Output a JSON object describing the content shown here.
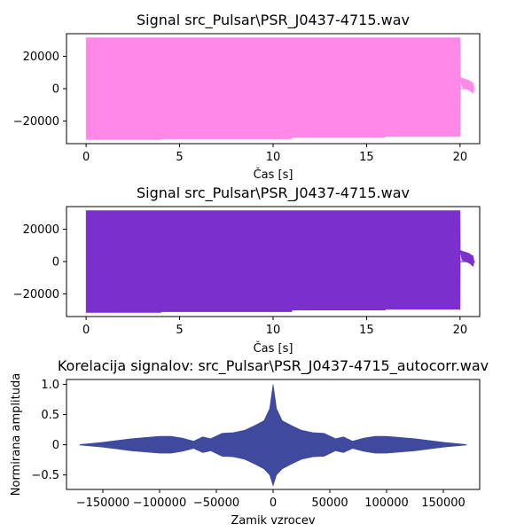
{
  "chart_data": [
    {
      "type": "area",
      "title": "Signal src_Pulsar\\PSR_J0437-4715.wav",
      "xlabel": "Čas [s]",
      "ylabel": "",
      "xlim": [
        -1.05,
        21.05
      ],
      "ylim": [
        -34000,
        34000
      ],
      "xticks": [
        0,
        5,
        10,
        15,
        20
      ],
      "yticks": [
        20000,
        0,
        -20000
      ],
      "color": "#ff88e8",
      "envelope": [
        [
          0,
          -31500,
          31500
        ],
        [
          4,
          -31500,
          31500
        ],
        [
          4.01,
          -31000,
          31500
        ],
        [
          11,
          -31000,
          31500
        ],
        [
          11.01,
          -30000,
          31500
        ],
        [
          16,
          -30000,
          31500
        ],
        [
          16.01,
          -29500,
          31500
        ],
        [
          20,
          -29500,
          31500
        ],
        [
          20.01,
          7000,
          7000
        ],
        [
          20.1,
          1000,
          6500
        ],
        [
          20.5,
          -1000,
          5000
        ],
        [
          20.6,
          -2000,
          4000
        ],
        [
          20.7,
          -3000,
          3500
        ],
        [
          20.75,
          0,
          0
        ],
        [
          20.8,
          0,
          0
        ]
      ]
    },
    {
      "type": "area",
      "title": "Signal src_Pulsar\\PSR_J0437-4715.wav",
      "xlabel": "Čas [s]",
      "ylabel": "",
      "xlim": [
        -1.05,
        21.05
      ],
      "ylim": [
        -34000,
        34000
      ],
      "xticks": [
        0,
        5,
        10,
        15,
        20
      ],
      "yticks": [
        20000,
        0,
        -20000
      ],
      "color": "#7b2fcd",
      "envelope": [
        [
          0,
          -31500,
          31500
        ],
        [
          4,
          -31500,
          31500
        ],
        [
          4.01,
          -31000,
          31500
        ],
        [
          11,
          -31000,
          31500
        ],
        [
          11.01,
          -30000,
          31500
        ],
        [
          16,
          -30000,
          31500
        ],
        [
          16.01,
          -29500,
          31500
        ],
        [
          20,
          -29500,
          31500
        ],
        [
          20.01,
          7000,
          7000
        ],
        [
          20.1,
          1000,
          6500
        ],
        [
          20.5,
          -1000,
          5000
        ],
        [
          20.6,
          -2000,
          4000
        ],
        [
          20.7,
          -3000,
          3500
        ],
        [
          20.75,
          0,
          0
        ],
        [
          20.8,
          0,
          0
        ]
      ]
    },
    {
      "type": "area",
      "title": "Korelacija signalov: src_Pulsar\\PSR_J0437-4715_autocorr.wav",
      "xlabel": "Zamik vzrocev",
      "ylabel": "Normirana amplituda",
      "xlim": [
        -182000,
        182000
      ],
      "ylim": [
        -0.74,
        1.08
      ],
      "xticks": [
        -150000,
        -100000,
        -50000,
        0,
        50000,
        100000,
        150000
      ],
      "yticks": [
        1.0,
        0.5,
        0.0,
        -0.5
      ],
      "color": "#3f4a9e",
      "envelope": [
        [
          -170000,
          -0.005,
          0.005
        ],
        [
          -150000,
          -0.04,
          0.04
        ],
        [
          -125000,
          -0.1,
          0.1
        ],
        [
          -100000,
          -0.14,
          0.14
        ],
        [
          -90000,
          -0.14,
          0.14
        ],
        [
          -80000,
          -0.11,
          0.11
        ],
        [
          -70000,
          -0.06,
          0.06
        ],
        [
          -62000,
          -0.13,
          0.13
        ],
        [
          -55000,
          -0.1,
          0.1
        ],
        [
          -45000,
          -0.19,
          0.19
        ],
        [
          -35000,
          -0.2,
          0.2
        ],
        [
          -25000,
          -0.24,
          0.24
        ],
        [
          -15000,
          -0.33,
          0.33
        ],
        [
          -8000,
          -0.4,
          0.4
        ],
        [
          -3000,
          -0.5,
          0.6
        ],
        [
          0,
          -0.68,
          1.0
        ],
        [
          3000,
          -0.5,
          0.6
        ],
        [
          8000,
          -0.4,
          0.4
        ],
        [
          15000,
          -0.33,
          0.33
        ],
        [
          25000,
          -0.24,
          0.24
        ],
        [
          35000,
          -0.2,
          0.2
        ],
        [
          45000,
          -0.19,
          0.19
        ],
        [
          55000,
          -0.1,
          0.1
        ],
        [
          62000,
          -0.13,
          0.13
        ],
        [
          70000,
          -0.06,
          0.06
        ],
        [
          80000,
          -0.11,
          0.11
        ],
        [
          90000,
          -0.14,
          0.14
        ],
        [
          100000,
          -0.14,
          0.14
        ],
        [
          125000,
          -0.1,
          0.1
        ],
        [
          150000,
          -0.04,
          0.04
        ],
        [
          170000,
          -0.005,
          0.005
        ]
      ]
    }
  ]
}
